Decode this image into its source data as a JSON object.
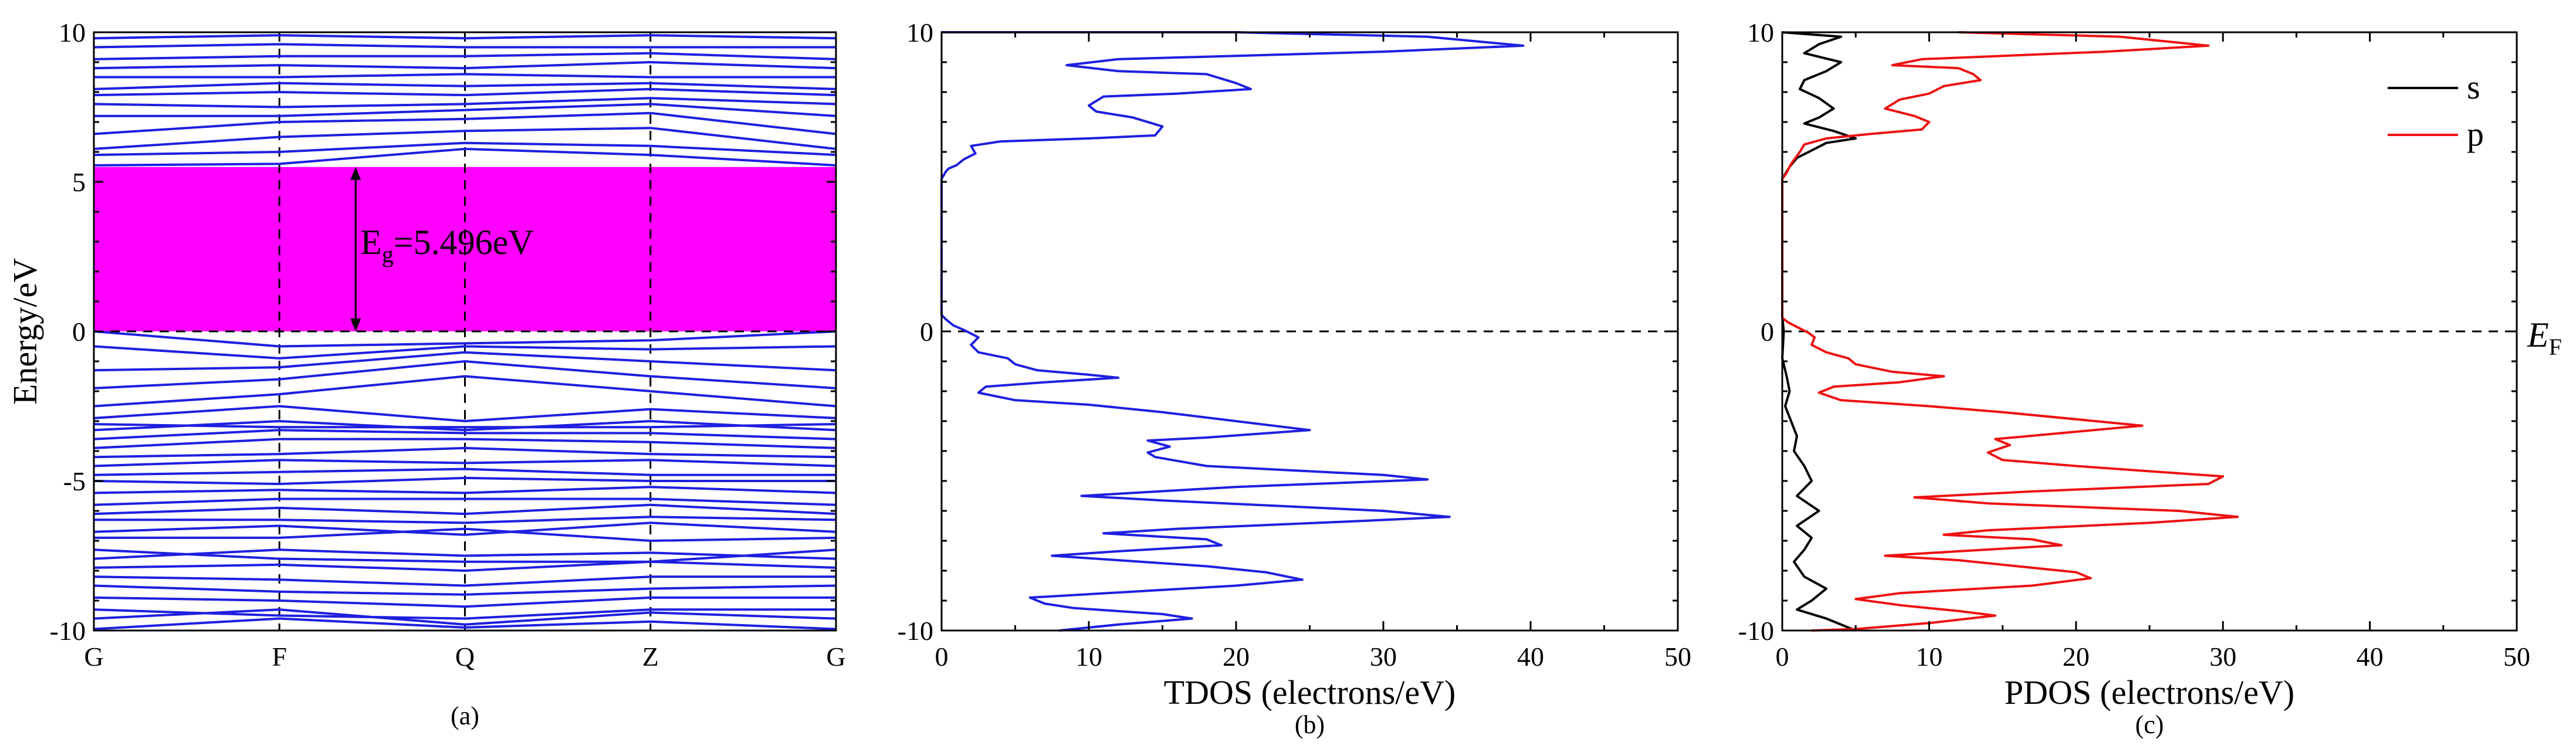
{
  "chart_data": [
    {
      "type": "line",
      "panel": "(a)",
      "title": "",
      "ylabel": "Energy/eV",
      "xlabel": "",
      "ylim": [
        -10,
        10
      ],
      "y_ticks": [
        -10,
        -5,
        0,
        5,
        10
      ],
      "x_ticks": [
        "G",
        "F",
        "Q",
        "Z",
        "G"
      ],
      "band_gap": {
        "label": "E",
        "subscript": "g",
        "value_text": "=5.496eV",
        "from": 0,
        "to": 5.496,
        "color": "#ff00ff"
      },
      "fermi_level": 0,
      "colors": {
        "bands": "#1f1fe0",
        "gap_fill": "#ff00ff",
        "reference": "#000000"
      },
      "bands": [
        [
          -9.95,
          -9.6,
          -9.9,
          -9.7,
          -9.95
        ],
        [
          -9.6,
          -9.3,
          -9.8,
          -9.4,
          -9.6
        ],
        [
          -9.3,
          -9.5,
          -9.6,
          -9.3,
          -9.3
        ],
        [
          -8.9,
          -9.0,
          -9.2,
          -8.9,
          -8.9
        ],
        [
          -8.5,
          -8.7,
          -8.8,
          -8.6,
          -8.5
        ],
        [
          -8.2,
          -8.3,
          -8.5,
          -8.2,
          -8.2
        ],
        [
          -7.9,
          -7.8,
          -8.0,
          -7.7,
          -7.9
        ],
        [
          -7.6,
          -7.3,
          -7.5,
          -7.4,
          -7.6
        ],
        [
          -7.3,
          -7.6,
          -7.7,
          -7.7,
          -7.3
        ],
        [
          -6.9,
          -6.9,
          -6.6,
          -7.0,
          -6.9
        ],
        [
          -6.7,
          -6.5,
          -6.8,
          -6.4,
          -6.7
        ],
        [
          -6.3,
          -6.3,
          -6.4,
          -6.2,
          -6.3
        ],
        [
          -6.1,
          -5.9,
          -6.1,
          -5.8,
          -6.1
        ],
        [
          -5.8,
          -5.6,
          -5.6,
          -5.6,
          -5.8
        ],
        [
          -5.4,
          -5.3,
          -5.4,
          -5.2,
          -5.4
        ],
        [
          -5.0,
          -5.1,
          -4.9,
          -5.0,
          -5.0
        ],
        [
          -4.8,
          -4.7,
          -4.6,
          -4.8,
          -4.8
        ],
        [
          -4.5,
          -4.3,
          -4.4,
          -4.3,
          -4.5
        ],
        [
          -4.2,
          -4.1,
          -3.9,
          -4.1,
          -4.2
        ],
        [
          -3.9,
          -3.6,
          -3.6,
          -3.7,
          -3.9
        ],
        [
          -3.6,
          -3.3,
          -3.4,
          -3.4,
          -3.6
        ],
        [
          -3.3,
          -3.0,
          -3.3,
          -3.0,
          -3.3
        ],
        [
          -3.1,
          -3.2,
          -3.2,
          -3.2,
          -3.1
        ],
        [
          -2.9,
          -2.5,
          -3.0,
          -2.6,
          -2.9
        ],
        [
          -2.5,
          -2.1,
          -1.5,
          -2.0,
          -2.5
        ],
        [
          -1.9,
          -1.6,
          -1.0,
          -1.5,
          -1.9
        ],
        [
          -1.3,
          -1.2,
          -0.7,
          -1.0,
          -1.3
        ],
        [
          -0.5,
          -0.9,
          -0.5,
          -0.6,
          -0.5
        ],
        [
          0.0,
          -0.5,
          -0.4,
          -0.3,
          0.0
        ],
        [
          5.55,
          5.6,
          6.1,
          5.9,
          5.55
        ],
        [
          5.9,
          6.0,
          6.3,
          6.2,
          5.9
        ],
        [
          6.1,
          6.5,
          6.7,
          6.8,
          6.1
        ],
        [
          6.6,
          7.0,
          7.1,
          7.3,
          6.6
        ],
        [
          7.2,
          7.2,
          7.4,
          7.6,
          7.2
        ],
        [
          7.6,
          7.5,
          7.6,
          7.8,
          7.6
        ],
        [
          7.9,
          8.0,
          7.9,
          8.1,
          7.9
        ],
        [
          8.1,
          8.3,
          8.2,
          8.3,
          8.1
        ],
        [
          8.5,
          8.5,
          8.6,
          8.5,
          8.5
        ],
        [
          8.8,
          8.9,
          8.8,
          9.0,
          8.8
        ],
        [
          9.1,
          9.2,
          9.2,
          9.3,
          9.1
        ],
        [
          9.5,
          9.6,
          9.5,
          9.5,
          9.5
        ],
        [
          9.8,
          9.9,
          9.8,
          9.9,
          9.8
        ]
      ]
    },
    {
      "type": "line",
      "panel": "(b)",
      "title": "",
      "xlabel": "TDOS (electrons/eV)",
      "ylabel": "",
      "xlim": [
        0,
        50
      ],
      "ylim": [
        -10,
        10
      ],
      "x_ticks": [
        0,
        10,
        20,
        30,
        40,
        50
      ],
      "y_ticks": [
        -10,
        0,
        10
      ],
      "fermi_level": 0,
      "series": [
        {
          "name": "TDOS",
          "color": "#1f1fe0",
          "points": [
            [
              0.0,
              10.0
            ],
            [
              20,
              10.0
            ],
            [
              33,
              9.85
            ],
            [
              39.5,
              9.55
            ],
            [
              30,
              9.35
            ],
            [
              12,
              9.1
            ],
            [
              8.5,
              8.9
            ],
            [
              12,
              8.7
            ],
            [
              18,
              8.6
            ],
            [
              20,
              8.3
            ],
            [
              21,
              8.1
            ],
            [
              16,
              7.95
            ],
            [
              11,
              7.85
            ],
            [
              10,
              7.55
            ],
            [
              10.5,
              7.35
            ],
            [
              13,
              7.15
            ],
            [
              15,
              6.85
            ],
            [
              14.5,
              6.55
            ],
            [
              10,
              6.45
            ],
            [
              4,
              6.35
            ],
            [
              2,
              6.2
            ],
            [
              2.3,
              5.95
            ],
            [
              1.5,
              5.75
            ],
            [
              1.0,
              5.55
            ],
            [
              0.5,
              5.45
            ],
            [
              0.3,
              5.35
            ],
            [
              0.0,
              5.1
            ],
            [
              0.0,
              0.55
            ],
            [
              0.3,
              0.4
            ],
            [
              0.8,
              0.2
            ],
            [
              1.5,
              0.05
            ],
            [
              2.5,
              -0.2
            ],
            [
              2.0,
              -0.45
            ],
            [
              2.5,
              -0.7
            ],
            [
              4.5,
              -0.9
            ],
            [
              5.0,
              -1.1
            ],
            [
              6.5,
              -1.3
            ],
            [
              10,
              -1.45
            ],
            [
              12,
              -1.55
            ],
            [
              7,
              -1.7
            ],
            [
              3,
              -1.85
            ],
            [
              2.5,
              -2.05
            ],
            [
              5,
              -2.3
            ],
            [
              10,
              -2.45
            ],
            [
              15,
              -2.7
            ],
            [
              25,
              -3.3
            ],
            [
              18,
              -3.55
            ],
            [
              14,
              -3.65
            ],
            [
              15.5,
              -3.85
            ],
            [
              14,
              -4.05
            ],
            [
              14.5,
              -4.2
            ],
            [
              18,
              -4.5
            ],
            [
              30,
              -4.8
            ],
            [
              33,
              -4.95
            ],
            [
              20,
              -5.2
            ],
            [
              9.5,
              -5.5
            ],
            [
              15,
              -5.65
            ],
            [
              30,
              -6.0
            ],
            [
              34.5,
              -6.2
            ],
            [
              28,
              -6.35
            ],
            [
              16,
              -6.6
            ],
            [
              11,
              -6.75
            ],
            [
              18,
              -6.95
            ],
            [
              19,
              -7.15
            ],
            [
              12,
              -7.35
            ],
            [
              7.5,
              -7.5
            ],
            [
              12,
              -7.65
            ],
            [
              18,
              -7.85
            ],
            [
              22,
              -8.05
            ],
            [
              24.5,
              -8.3
            ],
            [
              20,
              -8.5
            ],
            [
              6,
              -8.9
            ],
            [
              7,
              -9.1
            ],
            [
              9,
              -9.25
            ],
            [
              15,
              -9.45
            ],
            [
              17,
              -9.6
            ],
            [
              12,
              -9.8
            ],
            [
              8,
              -10.0
            ]
          ]
        }
      ]
    },
    {
      "type": "line",
      "panel": "(c)",
      "title": "",
      "xlabel": "PDOS (electrons/eV)",
      "ylabel": "",
      "xlim": [
        0,
        50
      ],
      "ylim": [
        -10,
        10
      ],
      "x_ticks": [
        0,
        10,
        20,
        30,
        40,
        50
      ],
      "y_ticks": [
        -10,
        0,
        10
      ],
      "fermi_level": 0,
      "fermi_label": {
        "text": "E",
        "subscript": "F"
      },
      "legend": {
        "position": "top-right",
        "entries": [
          "s",
          "p"
        ]
      },
      "series": [
        {
          "name": "s",
          "color": "#000000",
          "points": [
            [
              0.0,
              10.0
            ],
            [
              4.0,
              9.85
            ],
            [
              2.5,
              9.6
            ],
            [
              1.5,
              9.3
            ],
            [
              4.0,
              9.0
            ],
            [
              3.0,
              8.7
            ],
            [
              1.5,
              8.4
            ],
            [
              1.2,
              8.1
            ],
            [
              2.5,
              7.8
            ],
            [
              3.5,
              7.45
            ],
            [
              2.5,
              7.15
            ],
            [
              1.5,
              6.95
            ],
            [
              3.5,
              6.7
            ],
            [
              5.0,
              6.45
            ],
            [
              3.0,
              6.3
            ],
            [
              2.0,
              6.05
            ],
            [
              1.0,
              5.8
            ],
            [
              0.5,
              5.5
            ],
            [
              0.0,
              5.1
            ],
            [
              0.0,
              0.5
            ],
            [
              0.1,
              0.0
            ],
            [
              0.0,
              -0.9
            ],
            [
              0.3,
              -1.5
            ],
            [
              0.5,
              -2.0
            ],
            [
              0.2,
              -2.5
            ],
            [
              0.6,
              -3.0
            ],
            [
              1.0,
              -3.5
            ],
            [
              0.8,
              -4.0
            ],
            [
              1.5,
              -4.5
            ],
            [
              2.0,
              -5.0
            ],
            [
              1.0,
              -5.5
            ],
            [
              2.5,
              -6.0
            ],
            [
              1.0,
              -6.5
            ],
            [
              2.0,
              -6.9
            ],
            [
              1.5,
              -7.3
            ],
            [
              0.8,
              -7.7
            ],
            [
              1.5,
              -8.2
            ],
            [
              3.0,
              -8.6
            ],
            [
              2.0,
              -9.0
            ],
            [
              1.0,
              -9.3
            ],
            [
              3.0,
              -9.6
            ],
            [
              5.0,
              -10.0
            ]
          ]
        },
        {
          "name": "p",
          "color": "#ee1111",
          "points": [
            [
              12,
              10.0
            ],
            [
              23,
              9.85
            ],
            [
              29,
              9.55
            ],
            [
              22,
              9.35
            ],
            [
              9.5,
              9.1
            ],
            [
              7.5,
              8.9
            ],
            [
              12,
              8.8
            ],
            [
              13,
              8.6
            ],
            [
              13.5,
              8.4
            ],
            [
              11,
              8.2
            ],
            [
              10,
              7.95
            ],
            [
              8,
              7.75
            ],
            [
              7,
              7.45
            ],
            [
              9,
              7.2
            ],
            [
              10,
              7.0
            ],
            [
              9.5,
              6.75
            ],
            [
              6,
              6.6
            ],
            [
              3,
              6.45
            ],
            [
              1.5,
              6.25
            ],
            [
              1.2,
              6.0
            ],
            [
              0.6,
              5.6
            ],
            [
              0.3,
              5.3
            ],
            [
              0.0,
              5.1
            ],
            [
              0.0,
              0.45
            ],
            [
              0.4,
              0.3
            ],
            [
              1.0,
              0.15
            ],
            [
              1.8,
              -0.05
            ],
            [
              2.2,
              -0.2
            ],
            [
              2.0,
              -0.45
            ],
            [
              3.0,
              -0.7
            ],
            [
              4.5,
              -0.9
            ],
            [
              5.0,
              -1.1
            ],
            [
              7.5,
              -1.35
            ],
            [
              11,
              -1.5
            ],
            [
              8,
              -1.7
            ],
            [
              3.5,
              -1.85
            ],
            [
              2.5,
              -2.05
            ],
            [
              4,
              -2.3
            ],
            [
              10,
              -2.5
            ],
            [
              15,
              -2.7
            ],
            [
              24.5,
              -3.15
            ],
            [
              19,
              -3.4
            ],
            [
              14.5,
              -3.6
            ],
            [
              15.5,
              -3.8
            ],
            [
              14,
              -4.05
            ],
            [
              15,
              -4.3
            ],
            [
              20,
              -4.5
            ],
            [
              30,
              -4.85
            ],
            [
              29,
              -5.1
            ],
            [
              17,
              -5.35
            ],
            [
              9,
              -5.55
            ],
            [
              14,
              -5.75
            ],
            [
              27,
              -6.0
            ],
            [
              31,
              -6.2
            ],
            [
              25,
              -6.4
            ],
            [
              14,
              -6.65
            ],
            [
              11,
              -6.8
            ],
            [
              17,
              -6.95
            ],
            [
              19,
              -7.15
            ],
            [
              12,
              -7.35
            ],
            [
              7,
              -7.5
            ],
            [
              12,
              -7.65
            ],
            [
              16,
              -7.85
            ],
            [
              20,
              -8.05
            ],
            [
              21,
              -8.25
            ],
            [
              17,
              -8.5
            ],
            [
              8,
              -8.75
            ],
            [
              5,
              -8.95
            ],
            [
              8,
              -9.15
            ],
            [
              12,
              -9.35
            ],
            [
              14.5,
              -9.5
            ],
            [
              10,
              -9.75
            ],
            [
              5,
              -9.95
            ],
            [
              2,
              -10.0
            ]
          ]
        }
      ]
    }
  ]
}
